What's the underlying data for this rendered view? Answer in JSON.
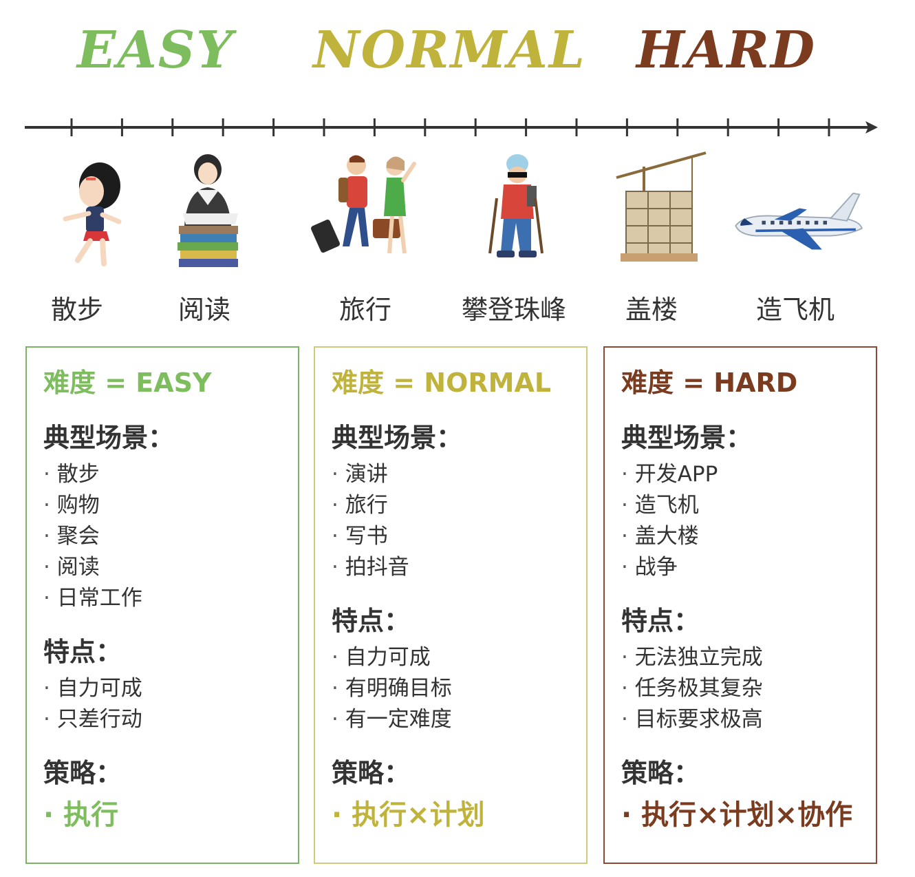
{
  "colors": {
    "easy": "#7dbd5e",
    "normal": "#bfb33b",
    "hard": "#7a3b1f",
    "card_border_easy": "#79b565",
    "card_border_normal": "#d4c97a",
    "card_border_hard": "#8a4a33",
    "timeline": "#333333"
  },
  "levels": [
    {
      "key": "easy",
      "title": "EASY"
    },
    {
      "key": "normal",
      "title": "NORMAL"
    },
    {
      "key": "hard",
      "title": "HARD"
    }
  ],
  "timeline": {
    "tick_count": 16
  },
  "activities": [
    {
      "label": "散步",
      "icon": "girl-walking-icon"
    },
    {
      "label": "阅读",
      "icon": "girl-reading-books-icon"
    },
    {
      "label": "旅行",
      "icon": "travelers-luggage-icon"
    },
    {
      "label": "攀登珠峰",
      "icon": "mountain-climber-icon"
    },
    {
      "label": "盖楼",
      "icon": "building-construction-crane-icon"
    },
    {
      "label": "造飞机",
      "icon": "airplane-icon"
    }
  ],
  "cards": {
    "easy": {
      "heading": "难度 = EASY",
      "scenes_title": "典型场景：",
      "scenes": [
        "散步",
        "购物",
        "聚会",
        "阅读",
        "日常工作"
      ],
      "traits_title": "特点：",
      "traits": [
        "自力可成",
        "只差行动"
      ],
      "strategy_title": "策略：",
      "strategy": "执行"
    },
    "normal": {
      "heading": "难度 = NORMAL",
      "scenes_title": "典型场景：",
      "scenes": [
        "演讲",
        "旅行",
        "写书",
        "拍抖音"
      ],
      "traits_title": "特点：",
      "traits": [
        "自力可成",
        "有明确目标",
        "有一定难度"
      ],
      "strategy_title": "策略：",
      "strategy": "执行×计划"
    },
    "hard": {
      "heading": "难度 = HARD",
      "scenes_title": "典型场景：",
      "scenes": [
        "开发APP",
        "造飞机",
        "盖大楼",
        "战争"
      ],
      "traits_title": "特点：",
      "traits": [
        "无法独立完成",
        "任务极其复杂",
        "目标要求极高"
      ],
      "strategy_title": "策略：",
      "strategy": "执行×计划×协作"
    }
  }
}
